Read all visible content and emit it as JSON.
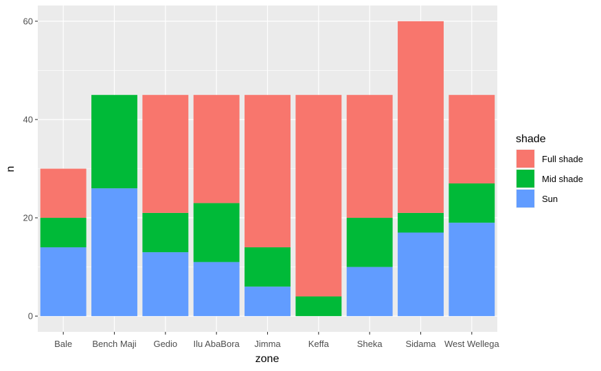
{
  "chart_data": {
    "type": "bar",
    "stacked": true,
    "xlabel": "zone",
    "ylabel": "n",
    "ylim": [
      -3.2,
      63.2
    ],
    "yticks": [
      0,
      20,
      40,
      60
    ],
    "grid": true,
    "legend_position": "right",
    "legend_title": "shade",
    "categories": [
      "Bale",
      "Bench Maji",
      "Gedio",
      "Ilu AbaBora",
      "Jimma",
      "Keffa",
      "Sheka",
      "Sidama",
      "West Wellega"
    ],
    "series": [
      {
        "name": "Full shade",
        "color": "#F8766D",
        "values": [
          10,
          0,
          24,
          22,
          31,
          41,
          25,
          39,
          18
        ]
      },
      {
        "name": "Mid shade",
        "color": "#00BA38",
        "values": [
          6,
          19,
          8,
          12,
          8,
          4,
          10,
          4,
          8
        ]
      },
      {
        "name": "Sun",
        "color": "#619CFF",
        "values": [
          14,
          26,
          13,
          11,
          6,
          0,
          10,
          17,
          19
        ]
      }
    ]
  },
  "colors": {
    "panel_background": "#EBEBEB",
    "grid_major": "#FFFFFF",
    "tick_text": "#4D4D4D",
    "axis_ticks": "#333333"
  }
}
